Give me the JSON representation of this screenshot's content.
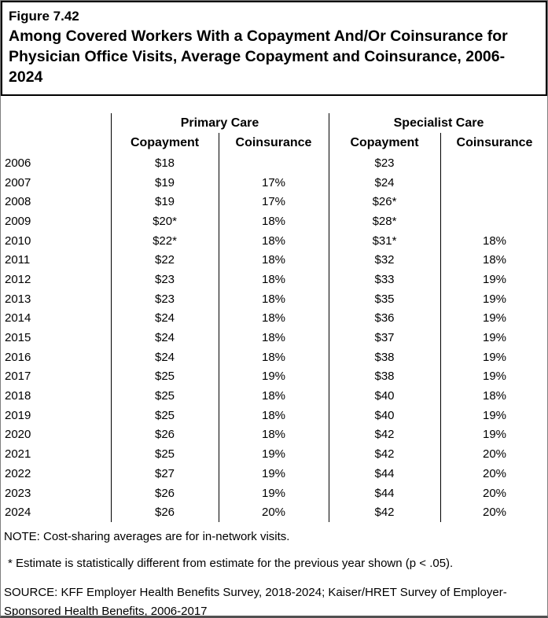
{
  "header": {
    "figure_label": "Figure 7.42",
    "title_lines": [
      "Among Covered Workers With a Copayment And/Or Coinsurance for",
      "Physician Office Visits, Average Copayment and Coinsurance, 2006-",
      "2024"
    ]
  },
  "table": {
    "group_headers": {
      "primary": "Primary Care",
      "specialist": "Specialist Care"
    },
    "sub_headers": {
      "primary_copayment": "Copayment",
      "primary_coinsurance": "Coinsurance",
      "specialist_copayment": "Copayment",
      "specialist_coinsurance": "Coinsurance"
    },
    "rows": [
      {
        "year": "2006",
        "pc_copay": "$18",
        "pc_coins": "",
        "sc_copay": "$23",
        "sc_coins": ""
      },
      {
        "year": "2007",
        "pc_copay": "$19",
        "pc_coins": "17%",
        "sc_copay": "$24",
        "sc_coins": ""
      },
      {
        "year": "2008",
        "pc_copay": "$19",
        "pc_coins": "17%",
        "sc_copay": "$26*",
        "sc_coins": ""
      },
      {
        "year": "2009",
        "pc_copay": "$20*",
        "pc_coins": "18%",
        "sc_copay": "$28*",
        "sc_coins": ""
      },
      {
        "year": "2010",
        "pc_copay": "$22*",
        "pc_coins": "18%",
        "sc_copay": "$31*",
        "sc_coins": "18%"
      },
      {
        "year": "2011",
        "pc_copay": "$22",
        "pc_coins": "18%",
        "sc_copay": "$32",
        "sc_coins": "18%"
      },
      {
        "year": "2012",
        "pc_copay": "$23",
        "pc_coins": "18%",
        "sc_copay": "$33",
        "sc_coins": "19%"
      },
      {
        "year": "2013",
        "pc_copay": "$23",
        "pc_coins": "18%",
        "sc_copay": "$35",
        "sc_coins": "19%"
      },
      {
        "year": "2014",
        "pc_copay": "$24",
        "pc_coins": "18%",
        "sc_copay": "$36",
        "sc_coins": "19%"
      },
      {
        "year": "2015",
        "pc_copay": "$24",
        "pc_coins": "18%",
        "sc_copay": "$37",
        "sc_coins": "19%"
      },
      {
        "year": "2016",
        "pc_copay": "$24",
        "pc_coins": "18%",
        "sc_copay": "$38",
        "sc_coins": "19%"
      },
      {
        "year": "2017",
        "pc_copay": "$25",
        "pc_coins": "19%",
        "sc_copay": "$38",
        "sc_coins": "19%"
      },
      {
        "year": "2018",
        "pc_copay": "$25",
        "pc_coins": "18%",
        "sc_copay": "$40",
        "sc_coins": "18%"
      },
      {
        "year": "2019",
        "pc_copay": "$25",
        "pc_coins": "18%",
        "sc_copay": "$40",
        "sc_coins": "19%"
      },
      {
        "year": "2020",
        "pc_copay": "$26",
        "pc_coins": "18%",
        "sc_copay": "$42",
        "sc_coins": "19%"
      },
      {
        "year": "2021",
        "pc_copay": "$25",
        "pc_coins": "19%",
        "sc_copay": "$42",
        "sc_coins": "20%"
      },
      {
        "year": "2022",
        "pc_copay": "$27",
        "pc_coins": "19%",
        "sc_copay": "$44",
        "sc_coins": "20%"
      },
      {
        "year": "2023",
        "pc_copay": "$26",
        "pc_coins": "19%",
        "sc_copay": "$44",
        "sc_coins": "20%"
      },
      {
        "year": "2024",
        "pc_copay": "$26",
        "pc_coins": "20%",
        "sc_copay": "$42",
        "sc_coins": "20%"
      }
    ]
  },
  "notes": {
    "note": "NOTE: Cost-sharing averages are for in-network visits.",
    "asterisk": "* Estimate is statistically different from estimate for the previous year shown (p < .05).",
    "source_lines": [
      "SOURCE: KFF Employer Health Benefits Survey, 2018-2024; Kaiser/HRET Survey of Employer-",
      "Sponsored Health Benefits, 2006-2017"
    ]
  },
  "colors": {
    "background": "#ffffff",
    "text": "#000000",
    "table_lines": "#000000",
    "frame_border": "#7f7f7f"
  },
  "chart_data": {
    "type": "table",
    "title": "Figure 7.42 — Among Covered Workers With a Copayment And/Or Coinsurance for Physician Office Visits, Average Copayment and Coinsurance, 2006-2024",
    "columns": [
      "Year",
      "Primary Care Copayment",
      "Primary Care Coinsurance",
      "Specialist Care Copayment",
      "Specialist Care Coinsurance"
    ],
    "rows": [
      [
        "2006",
        "$18",
        "",
        "$23",
        ""
      ],
      [
        "2007",
        "$19",
        "17%",
        "$24",
        ""
      ],
      [
        "2008",
        "$19",
        "17%",
        "$26*",
        ""
      ],
      [
        "2009",
        "$20*",
        "18%",
        "$28*",
        ""
      ],
      [
        "2010",
        "$22*",
        "18%",
        "$31*",
        "18%"
      ],
      [
        "2011",
        "$22",
        "18%",
        "$32",
        "18%"
      ],
      [
        "2012",
        "$23",
        "18%",
        "$33",
        "19%"
      ],
      [
        "2013",
        "$23",
        "18%",
        "$35",
        "19%"
      ],
      [
        "2014",
        "$24",
        "18%",
        "$36",
        "19%"
      ],
      [
        "2015",
        "$24",
        "18%",
        "$37",
        "19%"
      ],
      [
        "2016",
        "$24",
        "18%",
        "$38",
        "19%"
      ],
      [
        "2017",
        "$25",
        "19%",
        "$38",
        "19%"
      ],
      [
        "2018",
        "$25",
        "18%",
        "$40",
        "18%"
      ],
      [
        "2019",
        "$25",
        "18%",
        "$40",
        "19%"
      ],
      [
        "2020",
        "$26",
        "18%",
        "$42",
        "19%"
      ],
      [
        "2021",
        "$25",
        "19%",
        "$42",
        "20%"
      ],
      [
        "2022",
        "$27",
        "19%",
        "$44",
        "20%"
      ],
      [
        "2023",
        "$26",
        "19%",
        "$44",
        "20%"
      ],
      [
        "2024",
        "$26",
        "20%",
        "$42",
        "20%"
      ]
    ],
    "footnote_marker_meaning": "* Estimate is statistically different from estimate for the previous year shown (p < .05)."
  }
}
